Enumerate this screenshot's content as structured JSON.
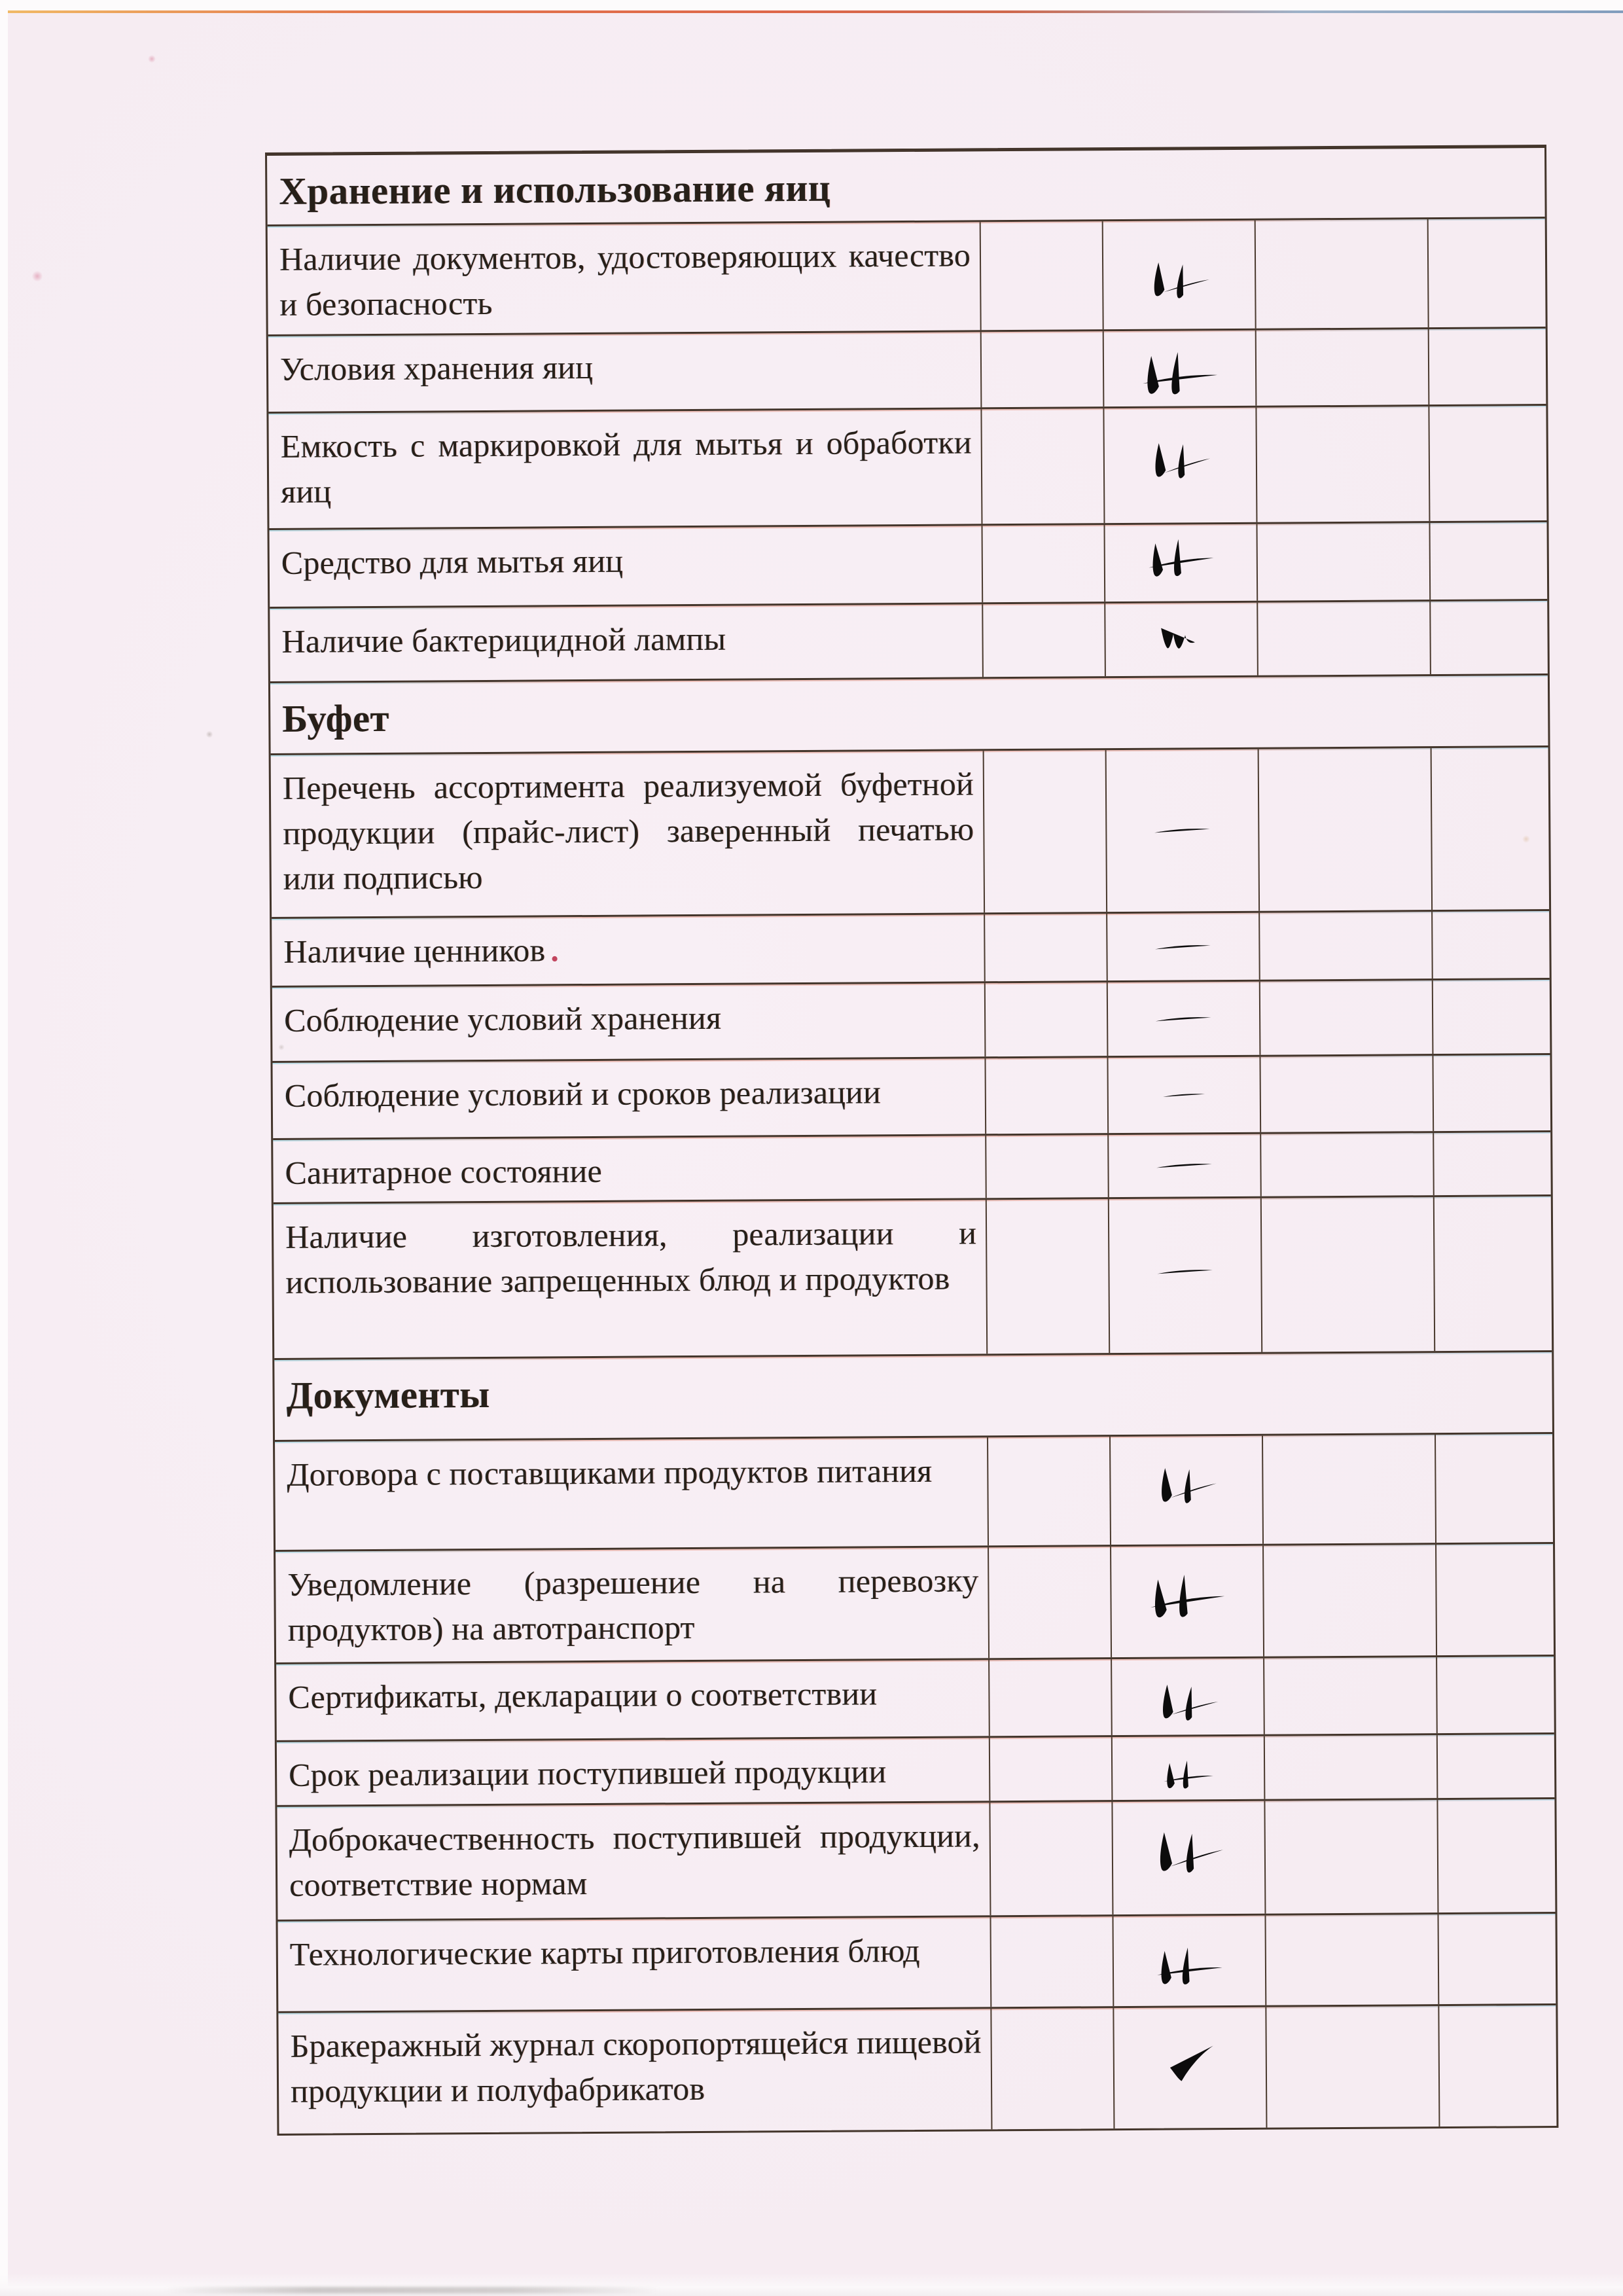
{
  "colors": {
    "paper": "#f6ecf2",
    "table_line": "#43352b",
    "pen_ink": "#4d55b8",
    "text": "#272019",
    "red_dot": "#c2455e"
  },
  "table": {
    "rows": [
      {
        "type": "section",
        "label": "Хранение и использование яиц"
      },
      {
        "type": "item",
        "label": "Наличие документов, удостоверяющих качество и безопасность",
        "mark": "check-scribble-a"
      },
      {
        "type": "item",
        "label": "Условия хранения яиц",
        "mark": "check-scribble-b"
      },
      {
        "type": "item",
        "label": "Емкость с маркировкой для мытья и обработки яиц",
        "mark": "check-scribble-a"
      },
      {
        "type": "item",
        "label": "Средство для мытья яиц",
        "mark": "check-scribble-b"
      },
      {
        "type": "item",
        "label": "Наличие бактерицидной лампы",
        "mark": "check-w"
      },
      {
        "type": "section",
        "label": "Буфет"
      },
      {
        "type": "item",
        "label": "Перечень ассортимента реализуемой буфетной продукции (прайс-лист) заверенный печатью или подписью",
        "mark": "dash"
      },
      {
        "type": "item",
        "label": "Наличие ценников",
        "dot": ".",
        "mark": "dash"
      },
      {
        "type": "item",
        "label": "Соблюдение условий хранения",
        "mark": "dash"
      },
      {
        "type": "item",
        "label": "Соблюдение условий и сроков реализации",
        "mark": "dash"
      },
      {
        "type": "item",
        "label": "Санитарное состояние",
        "mark": "dash"
      },
      {
        "type": "item",
        "label": "Наличие изготовления, реализации и использование запрещенных блюд и продуктов",
        "mark": "dash"
      },
      {
        "type": "section",
        "label": "Документы"
      },
      {
        "type": "item",
        "label": "Договора с поставщиками продуктов питания",
        "mark": "check-scribble-a"
      },
      {
        "type": "item",
        "label": "Уведомление (разрешение на перевозку продуктов) на автотранспорт",
        "mark": "check-scribble-b"
      },
      {
        "type": "item",
        "label": "Сертификаты, декларации о соответствии",
        "mark": "check-scribble-a"
      },
      {
        "type": "item",
        "label": "Срок реализации поступившей продукции",
        "mark": "check-scribble-b"
      },
      {
        "type": "item",
        "label": "Доброкачественность поступившей продукции, соответствие нормам",
        "mark": "check-scribble-a"
      },
      {
        "type": "item",
        "label": "Технологические карты приготовления блюд",
        "mark": "check-scribble-b"
      },
      {
        "type": "item",
        "label": "Бракеражный журнал скоропортящейся пищевой продукции и полуфабрикатов",
        "mark": "check-plain"
      }
    ]
  }
}
